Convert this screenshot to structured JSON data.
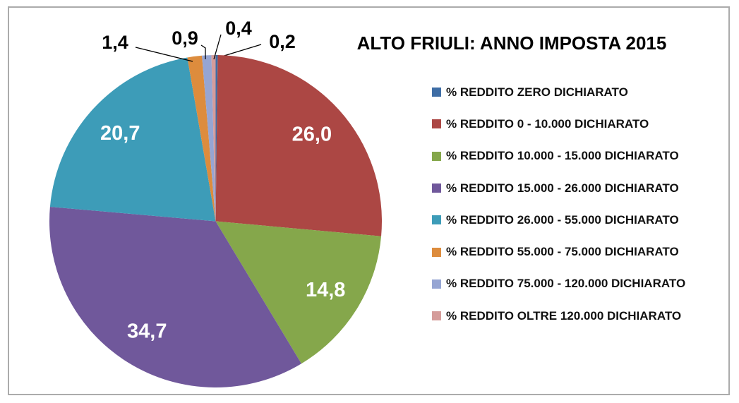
{
  "title": "ALTO FRIULI: ANNO IMPOSTA 2015",
  "chart_data": {
    "type": "pie",
    "title": "ALTO FRIULI: ANNO IMPOSTA 2015",
    "legend_position": "right",
    "start_angle_deg": 0,
    "direction": "clockwise",
    "value_suffix": "%",
    "slices": [
      {
        "label": "% REDDITO ZERO DICHIARATO",
        "value": 0.2,
        "value_label": "0,2",
        "color": "#3E6DA5",
        "label_placement": "outside"
      },
      {
        "label": "% REDDITO 0 - 10.000 DICHIARATO",
        "value": 26.0,
        "value_label": "26,0",
        "color": "#AC4744",
        "label_placement": "inside"
      },
      {
        "label": "% REDDITO 10.000 - 15.000 DICHIARATO",
        "value": 14.8,
        "value_label": "14,8",
        "color": "#85A74B",
        "label_placement": "inside"
      },
      {
        "label": "% REDDITO 15.000 - 26.000 DICHIARATO",
        "value": 34.7,
        "value_label": "34,7",
        "color": "#70589B",
        "label_placement": "inside"
      },
      {
        "label": "% REDDITO 26.000 - 55.000 DICHIARATO",
        "value": 20.7,
        "value_label": "20,7",
        "color": "#3D9CB8",
        "label_placement": "inside"
      },
      {
        "label": "% REDDITO 55.000 - 75.000 DICHIARATO",
        "value": 1.4,
        "value_label": "1,4",
        "color": "#DD8C3D",
        "label_placement": "outside"
      },
      {
        "label": "% REDDITO 75.000 - 120.000 DICHIARATO",
        "value": 0.9,
        "value_label": "0,9",
        "color": "#96A5D3",
        "label_placement": "outside"
      },
      {
        "label": "% REDDITO OLTRE 120.000 DICHIARATO",
        "value": 0.4,
        "value_label": "0,4",
        "color": "#D59C9A",
        "label_placement": "outside"
      }
    ],
    "frame_border_color": "#ABABAB",
    "background_color": "#FFFFFF"
  }
}
